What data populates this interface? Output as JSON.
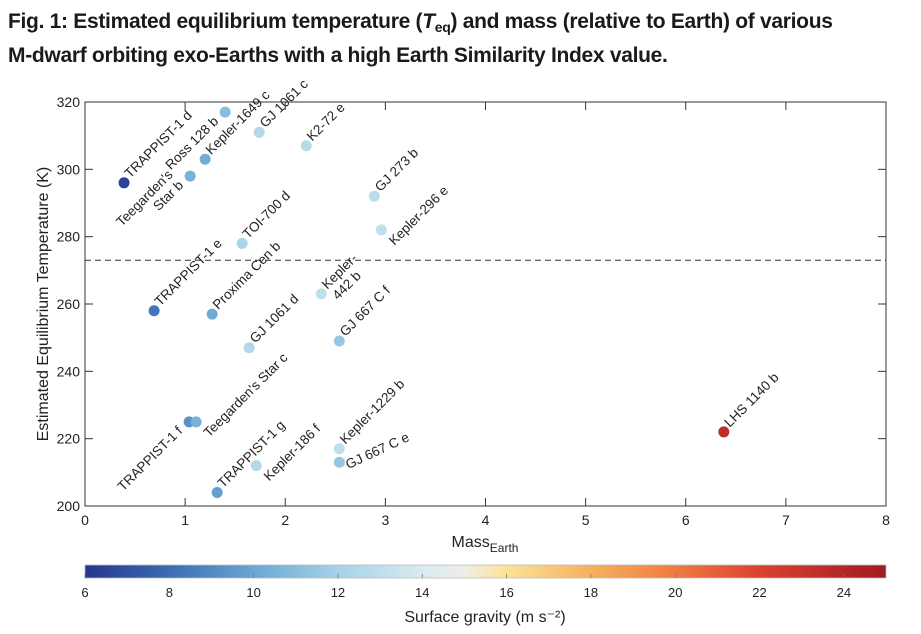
{
  "figure": {
    "title_line1_prefix": "Fig. 1: Estimated equilibrium temperature (",
    "title_symbol": "T",
    "title_symbol_sub": "eq",
    "title_line1_suffix": ") and mass (relative to Earth) of various",
    "title_line2": "M-dwarf orbiting exo-Earths with a high Earth Similarity Index value."
  },
  "chart_data": {
    "type": "scatter",
    "xlabel": "Mass",
    "xlabel_sub": "Earth",
    "ylabel": "Estimated Equilibrium Temperature (K)",
    "xlim": [
      0,
      8
    ],
    "ylim": [
      200,
      320
    ],
    "xticks": [
      0,
      1,
      2,
      3,
      4,
      5,
      6,
      7,
      8
    ],
    "yticks": [
      200,
      220,
      240,
      260,
      280,
      300,
      320
    ],
    "reference_line": {
      "y": 273,
      "style": "dashed"
    },
    "grid": false,
    "colorbar": {
      "label": "Surface gravity (m s⁻²)",
      "range": [
        6,
        25
      ],
      "ticks": [
        6,
        8,
        10,
        12,
        14,
        16,
        18,
        20,
        22,
        24
      ],
      "colormap": [
        {
          "v": 6,
          "c": "#26348e"
        },
        {
          "v": 8,
          "c": "#3b6cb4"
        },
        {
          "v": 10,
          "c": "#6aa7d3"
        },
        {
          "v": 12,
          "c": "#a5d2e7"
        },
        {
          "v": 14,
          "c": "#d9ebf1"
        },
        {
          "v": 15,
          "c": "#eeeee6"
        },
        {
          "v": 16,
          "c": "#fbe397"
        },
        {
          "v": 18,
          "c": "#f7b05d"
        },
        {
          "v": 20,
          "c": "#ef7b42"
        },
        {
          "v": 22,
          "c": "#da4230"
        },
        {
          "v": 25,
          "c": "#9f1a22"
        }
      ]
    },
    "points": [
      {
        "name": [
          "TRAPPIST-1 d"
        ],
        "mass": 0.39,
        "teq": 296,
        "gravity": 6.5,
        "label": "ne"
      },
      {
        "name": [
          "Ross 128 b"
        ],
        "mass": 1.4,
        "teq": 317,
        "gravity": 11.0,
        "label": "sw"
      },
      {
        "name": [
          "Kepler-1649 c"
        ],
        "mass": 1.2,
        "teq": 303,
        "gravity": 10.3,
        "label": "ne"
      },
      {
        "name": [
          "Teegarden's",
          "Star b"
        ],
        "mass": 1.05,
        "teq": 298,
        "gravity": 10.5,
        "label": "sw"
      },
      {
        "name": [
          "GJ 1061 c"
        ],
        "mass": 1.74,
        "teq": 311,
        "gravity": 12.5,
        "label": "ne"
      },
      {
        "name": [
          "K2-72 e"
        ],
        "mass": 2.21,
        "teq": 307,
        "gravity": 12.6,
        "label": "ne"
      },
      {
        "name": [
          "GJ 273 b"
        ],
        "mass": 2.89,
        "teq": 292,
        "gravity": 12.8,
        "label": "ne"
      },
      {
        "name": [
          "Kepler-296 e"
        ],
        "mass": 2.96,
        "teq": 282,
        "gravity": 13.0,
        "label": "se"
      },
      {
        "name": [
          "TOI-700 d"
        ],
        "mass": 1.57,
        "teq": 278,
        "gravity": 12.2,
        "label": "ne"
      },
      {
        "name": [
          "TRAPPIST-1 e"
        ],
        "mass": 0.69,
        "teq": 258,
        "gravity": 8.3,
        "label": "ne"
      },
      {
        "name": [
          "Proxima Cen b"
        ],
        "mass": 1.27,
        "teq": 257,
        "gravity": 10.2,
        "label": "ne"
      },
      {
        "name": [
          "Kepler-",
          "442 b"
        ],
        "mass": 2.36,
        "teq": 263,
        "gravity": 13.0,
        "label": "ne"
      },
      {
        "name": [
          "GJ 1061 d"
        ],
        "mass": 1.64,
        "teq": 247,
        "gravity": 12.5,
        "label": "ne"
      },
      {
        "name": [
          "GJ 667 C f"
        ],
        "mass": 2.54,
        "teq": 249,
        "gravity": 11.5,
        "label": "ne"
      },
      {
        "name": [
          "TRAPPIST-1 f"
        ],
        "mass": 1.04,
        "teq": 225,
        "gravity": 9.3,
        "label": "sw"
      },
      {
        "name": [
          "Teegarden's Star c"
        ],
        "mass": 1.11,
        "teq": 225,
        "gravity": 10.5,
        "label": "se"
      },
      {
        "name": [
          "TRAPPIST-1 g"
        ],
        "mass": 1.32,
        "teq": 204,
        "gravity": 9.7,
        "label": "ne"
      },
      {
        "name": [
          "Kepler-186 f"
        ],
        "mass": 1.71,
        "teq": 212,
        "gravity": 12.5,
        "label": "se"
      },
      {
        "name": [
          "Kepler-1229 b"
        ],
        "mass": 2.54,
        "teq": 217,
        "gravity": 13.0,
        "label": "ne"
      },
      {
        "name": [
          "GJ 667 C e"
        ],
        "mass": 2.54,
        "teq": 213,
        "gravity": 11.5,
        "label": "e"
      },
      {
        "name": [
          "LHS 1140 b"
        ],
        "mass": 6.38,
        "teq": 222,
        "gravity": 23.5,
        "label": "ne"
      }
    ]
  }
}
